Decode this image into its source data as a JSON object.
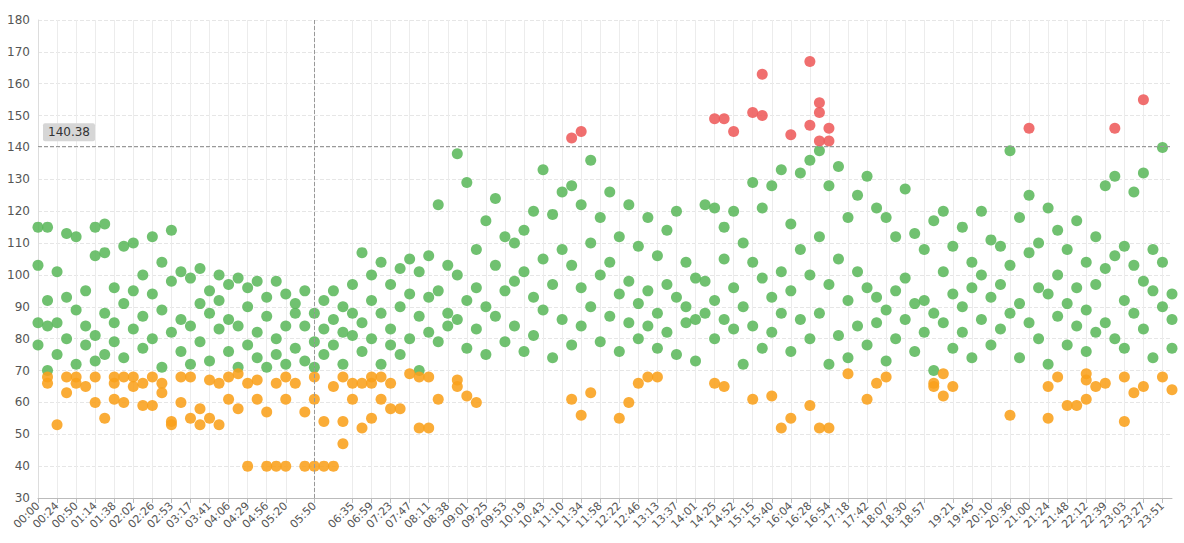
{
  "chart_data": {
    "type": "scatter",
    "categories": [
      "00:00",
      null,
      "00:24",
      null,
      "00:50",
      null,
      "01:14",
      null,
      "01:38",
      null,
      "02:02",
      null,
      "02:26",
      null,
      "02:53",
      null,
      "03:17",
      null,
      "03:41",
      null,
      "04:06",
      null,
      "04:29",
      null,
      "04:56",
      null,
      "05:20",
      null,
      null,
      "05:50",
      null,
      null,
      null,
      "06:35",
      null,
      "06:59",
      null,
      "07:23",
      null,
      "07:47",
      null,
      "08:11",
      null,
      "08:38",
      null,
      "09:01",
      null,
      "09:25",
      null,
      "09:53",
      null,
      "10:19",
      null,
      "10:43",
      null,
      "11:10",
      null,
      "11:34",
      null,
      "11:58",
      null,
      "12:22",
      null,
      "12:46",
      null,
      "13:13",
      null,
      "13:37",
      null,
      "14:01",
      null,
      "14:25",
      null,
      "14:52",
      null,
      "15:15",
      null,
      "15:40",
      null,
      "16:04",
      null,
      "16:28",
      null,
      "16:54",
      null,
      "17:18",
      null,
      "17:42",
      null,
      "18:07",
      null,
      "18:30",
      null,
      "18:57",
      null,
      null,
      "19:21",
      null,
      "19:45",
      null,
      "20:10",
      null,
      "20:36",
      null,
      "21:00",
      null,
      "21:24",
      null,
      "21:48",
      null,
      "22:12",
      null,
      "22:39",
      null,
      "23:03",
      null,
      "23:27",
      null,
      "23:51",
      null
    ],
    "series": [
      {
        "color": "#5cb85c",
        "values": [
          [
            103,
            85,
            78,
            115
          ],
          [
            92,
            70,
            84,
            115
          ],
          [
            101,
            85,
            75
          ],
          [
            113,
            93,
            80
          ],
          [
            89,
            112,
            72
          ],
          [
            95,
            84,
            78
          ],
          [
            106,
            81,
            73,
            115
          ],
          [
            88,
            107,
            75,
            116
          ],
          [
            96,
            79,
            85
          ],
          [
            109,
            91,
            74
          ],
          [
            83,
            110,
            95
          ],
          [
            100,
            77,
            87
          ],
          [
            112,
            94,
            80
          ],
          [
            104,
            71,
            89
          ],
          [
            114,
            98,
            82
          ],
          [
            86,
            101,
            76
          ],
          [
            99,
            84,
            72
          ],
          [
            102,
            91,
            79
          ],
          [
            95,
            73,
            88
          ],
          [
            100,
            83,
            92
          ],
          [
            97,
            76,
            86
          ],
          [
            84,
            99,
            71
          ],
          [
            90,
            78,
            96
          ],
          [
            98,
            82,
            74
          ],
          [
            87,
            93,
            71
          ],
          [
            98,
            80,
            75
          ],
          [
            94,
            84,
            72
          ],
          [
            88,
            77,
            91
          ],
          [
            84,
            95,
            73
          ],
          [
            88,
            79,
            71
          ],
          [
            92,
            83,
            75
          ],
          [
            95,
            86,
            78
          ],
          [
            90,
            72,
            82
          ],
          [
            97,
            81,
            88
          ],
          [
            107,
            85,
            76
          ],
          [
            100,
            92,
            80
          ],
          [
            104,
            88,
            72
          ],
          [
            97,
            83,
            78
          ],
          [
            102,
            90,
            75
          ],
          [
            105,
            94,
            80
          ],
          [
            101,
            87,
            70
          ],
          [
            106,
            93,
            82
          ],
          [
            122,
            95,
            79
          ],
          [
            103,
            88,
            84
          ],
          [
            138,
            100,
            86
          ],
          [
            129,
            92,
            77
          ],
          [
            108,
            96,
            83
          ],
          [
            117,
            90,
            75
          ],
          [
            124,
            103,
            87
          ],
          [
            112,
            95,
            79
          ],
          [
            110,
            98,
            84
          ],
          [
            114,
            101,
            76
          ],
          [
            120,
            93,
            81
          ],
          [
            133,
            105,
            89
          ],
          [
            119,
            97,
            74
          ],
          [
            126,
            108,
            86
          ],
          [
            128,
            103,
            78
          ],
          [
            122,
            96,
            84
          ],
          [
            136,
            110,
            90
          ],
          [
            118,
            100,
            79
          ],
          [
            126,
            104,
            87
          ],
          [
            112,
            94,
            76
          ],
          [
            122,
            98,
            85
          ],
          [
            109,
            91,
            80
          ],
          [
            118,
            95,
            84
          ],
          [
            106,
            88,
            77
          ],
          [
            114,
            97,
            82
          ],
          [
            120,
            93,
            75
          ],
          [
            104,
            90,
            85
          ],
          [
            99,
            86,
            73
          ],
          [
            122,
            98,
            88
          ],
          [
            121,
            92,
            80
          ],
          [
            115,
            105,
            86
          ],
          [
            120,
            96,
            83
          ],
          [
            110,
            90,
            72
          ],
          [
            129,
            104,
            84
          ],
          [
            121,
            99,
            77
          ],
          [
            128,
            93,
            82
          ],
          [
            133,
            101,
            88
          ],
          [
            116,
            95,
            76
          ],
          [
            132,
            108,
            86
          ],
          [
            136,
            100,
            80
          ],
          [
            139,
            112,
            88
          ],
          [
            128,
            97,
            72
          ],
          [
            134,
            105,
            81
          ],
          [
            118,
            92,
            74
          ],
          [
            125,
            101,
            84
          ],
          [
            131,
            96,
            78
          ],
          [
            121,
            93,
            85
          ],
          [
            118,
            89,
            73
          ],
          [
            112,
            95,
            80
          ],
          [
            127,
            99,
            86
          ],
          [
            113,
            91,
            76
          ],
          [
            108,
            92,
            82
          ],
          [
            117,
            88,
            70
          ],
          [
            120,
            101,
            85
          ],
          [
            109,
            94,
            77
          ],
          [
            115,
            90,
            82
          ],
          [
            104,
            96,
            74
          ],
          [
            120,
            100,
            86
          ],
          [
            111,
            93,
            78
          ],
          [
            109,
            97,
            83
          ],
          [
            139,
            103,
            88
          ],
          [
            118,
            91,
            74
          ],
          [
            125,
            107,
            85
          ],
          [
            110,
            96,
            80
          ],
          [
            121,
            94,
            72
          ],
          [
            114,
            100,
            87
          ],
          [
            108,
            91,
            78
          ],
          [
            117,
            96,
            84
          ],
          [
            104,
            89,
            76
          ],
          [
            112,
            97,
            82
          ],
          [
            128,
            102,
            85
          ],
          [
            131,
            106,
            80
          ],
          [
            109,
            92,
            77
          ],
          [
            126,
            103,
            88
          ],
          [
            132,
            98,
            83
          ],
          [
            108,
            95,
            74
          ],
          [
            140,
            104,
            90
          ],
          [
            94,
            86,
            77
          ]
        ]
      },
      {
        "color": "#f9a11b",
        "values": [
          [],
          [
            68,
            66
          ],
          [
            53
          ],
          [
            68,
            63
          ],
          [
            66,
            68
          ],
          [
            65
          ],
          [
            60,
            68
          ],
          [
            55
          ],
          [
            68,
            61,
            66
          ],
          [
            68,
            60
          ],
          [
            68,
            65
          ],
          [
            59,
            66
          ],
          [
            59,
            68
          ],
          [
            66,
            63
          ],
          [
            54,
            53
          ],
          [
            68,
            60
          ],
          [
            68,
            55
          ],
          [
            53,
            58
          ],
          [
            67,
            55
          ],
          [
            66,
            53
          ],
          [
            68,
            61
          ],
          [
            69,
            58
          ],
          [
            66,
            40
          ],
          [
            61,
            67
          ],
          [
            40,
            57
          ],
          [
            66,
            40
          ],
          [
            61,
            40,
            68
          ],
          [
            66
          ],
          [
            40,
            57
          ],
          [
            61,
            40,
            68
          ],
          [
            40,
            54
          ],
          [
            65,
            40
          ],
          [
            54,
            68,
            47
          ],
          [
            66,
            61
          ],
          [
            66,
            52
          ],
          [
            68,
            55,
            66
          ],
          [
            61,
            68
          ],
          [
            58,
            66
          ],
          [
            58
          ],
          [
            69
          ],
          [
            68,
            52
          ],
          [
            68,
            52
          ],
          [
            61
          ],
          [],
          [
            65,
            67
          ],
          [
            62
          ],
          [
            60
          ],
          [],
          [],
          [],
          [],
          [],
          [],
          [],
          [],
          [],
          [
            61
          ],
          [
            56
          ],
          [
            63
          ],
          [],
          [],
          [
            55
          ],
          [
            60
          ],
          [
            66
          ],
          [
            68
          ],
          [
            68
          ],
          [],
          [],
          [],
          [],
          [],
          [
            66
          ],
          [
            65
          ],
          [],
          [],
          [
            61
          ],
          [],
          [
            62
          ],
          [
            52
          ],
          [
            55
          ],
          [],
          [
            59
          ],
          [
            52
          ],
          [
            52
          ],
          [],
          [
            69
          ],
          [],
          [
            61
          ],
          [
            66
          ],
          [
            68
          ],
          [],
          [],
          [],
          [],
          [
            66,
            65
          ],
          [
            69,
            62
          ],
          [
            65
          ],
          [],
          [],
          [],
          [],
          [],
          [
            56
          ],
          [],
          [],
          [],
          [
            65,
            55
          ],
          [
            68
          ],
          [
            59
          ],
          [
            59
          ],
          [
            61,
            69,
            67
          ],
          [
            65
          ],
          [
            66
          ],
          [],
          [
            54,
            68
          ],
          [
            63
          ],
          [
            65
          ],
          [],
          [
            68
          ],
          [
            64
          ]
        ]
      },
      {
        "color": "#ee5b5b",
        "values": [
          [],
          [],
          [],
          [],
          [],
          [],
          [],
          [],
          [],
          [],
          [],
          [],
          [],
          [],
          [],
          [],
          [],
          [],
          [],
          [],
          [],
          [],
          [],
          [],
          [],
          [],
          [],
          [],
          [],
          [],
          [],
          [],
          [],
          [],
          [],
          [],
          [],
          [],
          [],
          [],
          [],
          [],
          [],
          [],
          [],
          [],
          [],
          [],
          [],
          [],
          [],
          [],
          [],
          [],
          [],
          [],
          [
            143
          ],
          [
            145
          ],
          [],
          [],
          [],
          [],
          [],
          [],
          [],
          [],
          [],
          [],
          [],
          [],
          [],
          [
            149
          ],
          [
            149
          ],
          [
            145
          ],
          [],
          [
            151
          ],
          [
            150,
            163
          ],
          [],
          [],
          [
            144
          ],
          [],
          [
            167,
            147
          ],
          [
            151,
            154,
            142
          ],
          [
            142,
            146
          ],
          [],
          [],
          [],
          [],
          [],
          [],
          [],
          [],
          [],
          [],
          [],
          [],
          [],
          [],
          [],
          [],
          [],
          [],
          [],
          [],
          [
            146
          ],
          [],
          [],
          [],
          [],
          [],
          [],
          [],
          [],
          [
            146
          ],
          [],
          [],
          [
            155
          ],
          [],
          [],
          []
        ]
      }
    ],
    "ylim": [
      30,
      180
    ],
    "yticks": [
      30,
      40,
      50,
      60,
      70,
      80,
      90,
      100,
      110,
      120,
      130,
      140,
      150,
      160,
      170,
      180
    ],
    "grid": true,
    "annotations": [
      {
        "x": "05:50",
        "y": 140.38
      }
    ]
  }
}
